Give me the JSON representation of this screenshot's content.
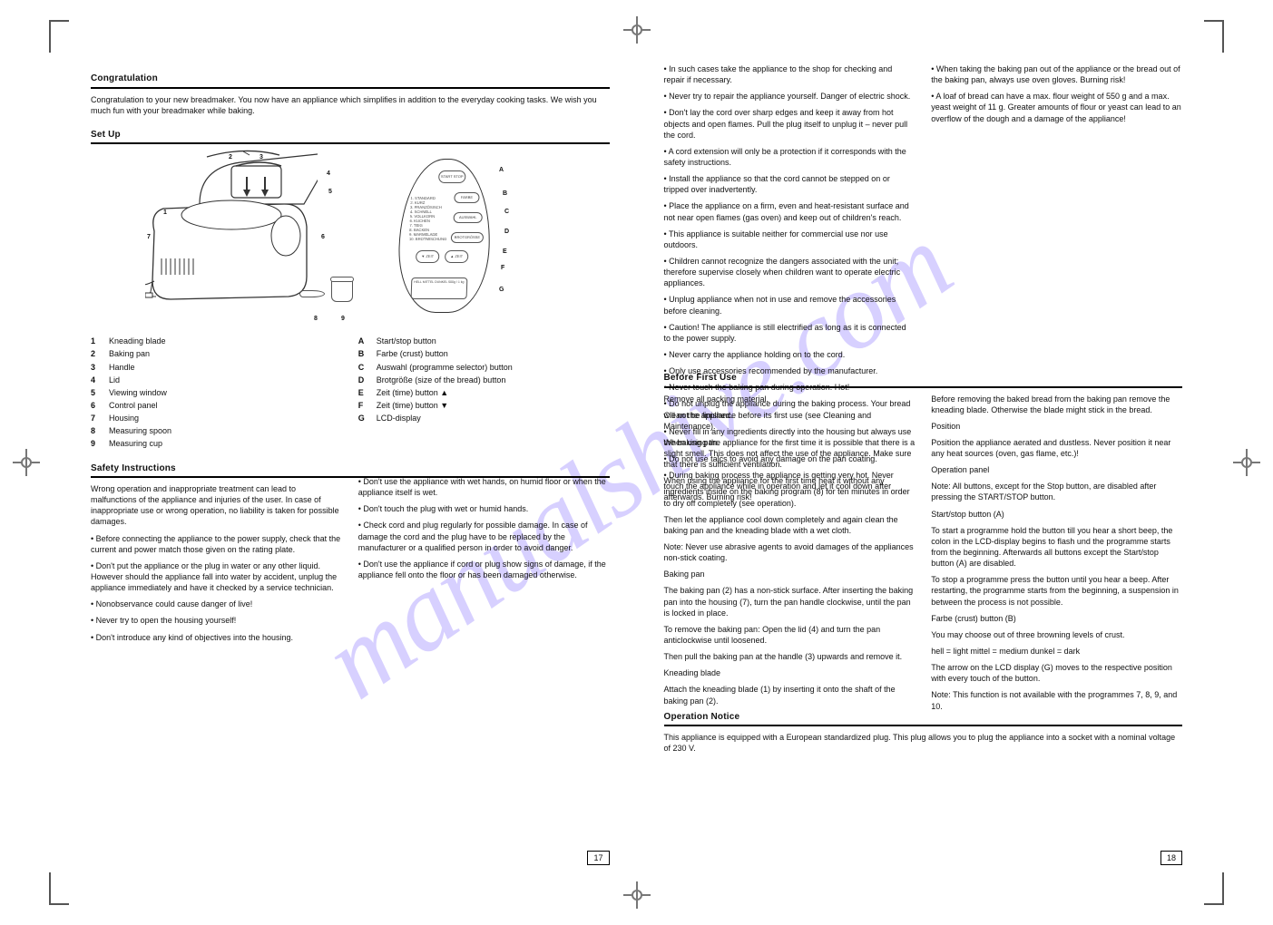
{
  "watermark": "manualshive.com",
  "page_left_num": "17",
  "page_right_num": "18",
  "sections": {
    "congrats": {
      "title": "Congratulation",
      "body": "Congratulation to your new breadmaker. You now have an appliance which simplifies in addition to the everyday cooking tasks. We wish you much fun with your breadmaker while baking."
    },
    "setup": {
      "title": "Set Up",
      "parts_left": [
        {
          "n": "1",
          "t": "Kneading blade"
        },
        {
          "n": "2",
          "t": "Baking pan"
        },
        {
          "n": "3",
          "t": "Handle"
        },
        {
          "n": "4",
          "t": "Lid"
        },
        {
          "n": "5",
          "t": "Viewing window"
        },
        {
          "n": "6",
          "t": "Control panel"
        },
        {
          "n": "7",
          "t": "Housing"
        },
        {
          "n": "8",
          "t": "Measuring spoon"
        },
        {
          "n": "9",
          "t": "Measuring cup"
        }
      ],
      "parts_right": [
        {
          "n": "A",
          "t": "Start/stop button"
        },
        {
          "n": "B",
          "t": "Farbe (crust) button"
        },
        {
          "n": "C",
          "t": "Auswahl (programme selector) button"
        },
        {
          "n": "D",
          "t": "Brotgröße (size of the bread) button"
        },
        {
          "n": "E",
          "t": "Zeit (time) button ▲"
        },
        {
          "n": "F",
          "t": "Zeit (time) button ▼"
        },
        {
          "n": "G",
          "t": "LCD-display"
        }
      ],
      "callouts_machine": [
        "1",
        "2",
        "3",
        "4",
        "5",
        "6",
        "7",
        "8",
        "9"
      ],
      "callouts_panel": [
        "A",
        "B",
        "C",
        "D",
        "E",
        "F",
        "G"
      ],
      "panel_btns": {
        "start": "START STOP",
        "farbe": "FARBE",
        "auswahl": "AUSWAHL",
        "brot": "BROTGRÖSSE",
        "zeit_dn": "▼ ZEIT",
        "zeit_up": "▲ ZEIT"
      },
      "panel_prog_lines": [
        "1. STANDARD",
        "2. KURZ",
        "3. FRANZÖSISCH",
        "4. SCHNELL",
        "5. VOLLKORN",
        "6. KUCHEN",
        "7. TEIG",
        "8. BACKEN",
        "9. MARMELADE",
        "10. BROTMISCHUNG"
      ],
      "panel_lcd_labels": "HELL  MITTEL  DUNKEL  500g / 1 kg"
    },
    "safety": {
      "title": "Safety Instructions",
      "intro": "Wrong operation and inappropriate treatment can lead to malfunctions of the appliance and injuries of the user. In case of inappropriate use or wrong operation, no liability is taken for possible damages.",
      "bullets_l1": [
        "Before connecting the appliance to the power supply, check that the current and power match those given on the rating plate.",
        "Don't put the appliance or the plug in water or any other liquid. However should the appliance fall into water by accident, unplug the appliance immediately and have it checked by a service technician.",
        "Nonobservance could cause danger of live!",
        "Never try to open the housing yourself!",
        "Don't introduce any kind of objectives into the housing.",
        "Don't use the appliance with wet hands, on humid floor or when the appliance itself is wet.",
        "Don't touch the plug with wet or humid hands.",
        "Check cord and plug regularly for possible damage. In case of damage the cord and the plug have to be replaced by the manufacturer or a qualified person in order to avoid danger.",
        "Don't use the appliance if cord or plug show signs of damage, if the appliance fell onto the floor or has been damaged otherwise."
      ],
      "bullets_r1": [
        "In such cases take the appliance to the shop for checking and repair if necessary.",
        "Never try to repair the appliance yourself. Danger of electric shock.",
        "Don't lay the cord over sharp edges and keep it away from hot objects and open flames. Pull the plug itself to unplug it – never pull the cord.",
        "A cord extension will only be a protection if it corresponds with the safety instructions.",
        "Install the appliance so that the cord cannot be stepped on or tripped over inadvertently.",
        "Place the appliance on a firm, even and heat-resistant surface and not near open flames (gas oven) and keep out of children's reach.",
        "This appliance is suitable neither for commercial use nor use outdoors.",
        "Children cannot recognize the dangers associated with the unit; therefore supervise closely when children want to operate electric appliances.",
        "Unplug appliance when not in use and remove the accessories before cleaning.",
        "Caution! The appliance is still electrified as long as it is connected to the power supply.",
        "Never carry the appliance holding on to the cord.",
        "Only use accessories recommended by the manufacturer.",
        "Never touch the baking pan during operation. Hot!",
        "Do not unplug the appliance during the baking process. Your bread will not be finished.",
        "Never fill in any ingredients directly into the housing but always use the baking pan.",
        "Do not use talcs to avoid any damage on the pan coating.",
        "During baking process the appliance is getting very hot. Never touch the appliance while in operation and let it cool down after afterwards. Burning risk!"
      ],
      "r2": [
        "When taking the baking pan out of the appliance or the bread out of the baking pan, always use oven gloves. Burning risk!",
        "A loaf of bread can have a max. flour weight of 550 g and a max. yeast weight of 11 g. Greater amounts of flour or yeast can lead to an overflow of the dough and a damage of the appliance!"
      ]
    },
    "before": {
      "title": "Before First Use",
      "paras_l": [
        "Remove all packing material.",
        "Clean the appliance before its first use (see Cleaning and Maintenance).",
        "When using the appliance for the first time it is possible that there is a slight smell. This does not affect the use of the appliance. Make sure that there is sufficient ventilation.",
        "When using the appliance for the first time heat it without any ingredients inside on the baking program (8) for ten minutes in order to dry off completely (see operation).",
        "Then let the appliance cool down completely and again clean the baking pan and the kneading blade with a wet cloth.",
        "Note: Never use abrasive agents to avoid damages of the appliances non-stick coating.",
        "Baking pan",
        "The baking pan (2) has a non-stick surface. After inserting the baking pan into the housing (7), turn the pan handle clockwise, until the pan is locked in place.",
        "To remove the baking pan: Open the lid (4) and turn the pan anticlockwise until loosened.",
        "Then pull the baking pan at the handle (3) upwards and remove it.",
        "Kneading blade",
        "Attach the kneading blade (1) by inserting it onto the shaft of the baking pan (2)."
      ],
      "paras_r": [
        "Before removing the baked bread from the baking pan remove the kneading blade. Otherwise the blade might stick in the bread.",
        "Position",
        "Position the appliance aerated and dustless. Never position it near any heat sources (oven, gas flame, etc.)!",
        "Operation panel",
        "Note: All buttons, except for the Stop button, are disabled after pressing the START/STOP button.",
        "Start/stop button (A)",
        "To start a programme hold the button till you hear a short beep, the colon in the LCD-display begins to flash und the programme starts from the beginning. Afterwards all buttons except the Start/stop button (A) are disabled.",
        "To stop a programme press the button until you hear a beep. After restarting, the programme starts from the beginning, a suspension in between the process is not possible.",
        "Farbe (crust) button (B)",
        "You may choose out of three browning levels of crust.",
        "hell = light   mittel = medium   dunkel = dark",
        "The arrow on the LCD display (G) moves to the respective position with every touch of the button.",
        "Note: This function is not available with the programmes 7, 8, 9, and 10."
      ]
    },
    "opnote": {
      "title": "Operation Notice",
      "body": "This appliance is equipped with a European standardized plug. This plug allows you to plug the appliance into a socket with a nominal voltage of 230 V."
    }
  }
}
